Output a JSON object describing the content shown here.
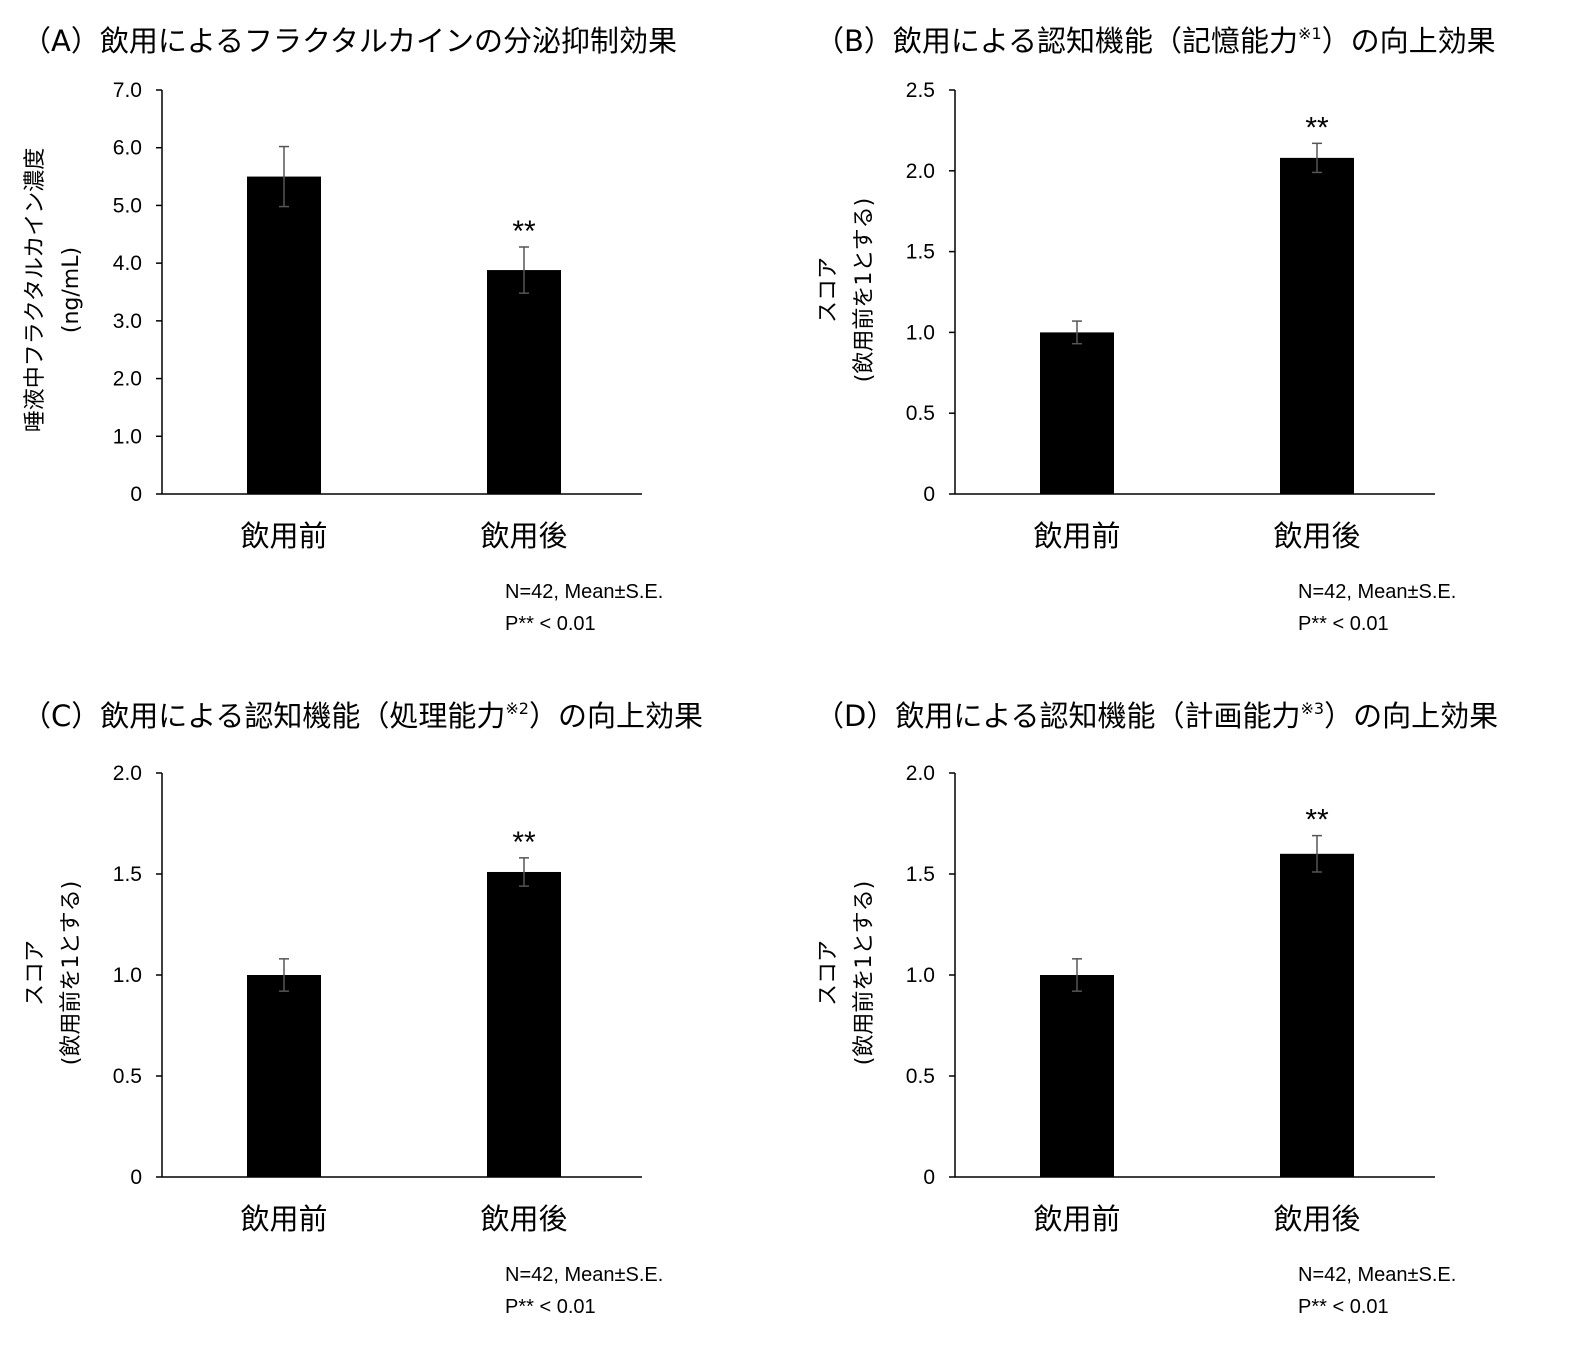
{
  "chart_data": [
    {
      "type": "bar",
      "title_prefix": "（A）",
      "title_main": "飲用によるフラクタルカインの分泌抑制効果",
      "title_sup": "",
      "title_suffix": "",
      "ylabel_line1": "唾液中フラクタルカイン濃度",
      "ylabel_line2": "(ng/mL)",
      "ylim": [
        0,
        7
      ],
      "yticks": [
        "0",
        "1.0",
        "2.0",
        "3.0",
        "4.0",
        "5.0",
        "6.0",
        "7.0"
      ],
      "categories": [
        "飲用前",
        "飲用後"
      ],
      "values": [
        5.5,
        3.88
      ],
      "errors": [
        0.52,
        0.4
      ],
      "significance": [
        "",
        "**"
      ],
      "note_line1": "N=42, Mean±S.E.",
      "note_line2": "P** < 0.01"
    },
    {
      "type": "bar",
      "title_prefix": "（B）",
      "title_main": "飲用による認知機能（記憶能力",
      "title_sup": "※1",
      "title_suffix": "）の向上効果",
      "ylabel_line1": "スコア",
      "ylabel_line2": "(飲用前を1とする)",
      "ylim": [
        0,
        2.5
      ],
      "yticks": [
        "0",
        "0.5",
        "1.0",
        "1.5",
        "2.0",
        "2.5"
      ],
      "categories": [
        "飲用前",
        "飲用後"
      ],
      "values": [
        1.0,
        2.08
      ],
      "errors": [
        0.07,
        0.09
      ],
      "significance": [
        "",
        "**"
      ],
      "note_line1": "N=42, Mean±S.E.",
      "note_line2": "P** < 0.01"
    },
    {
      "type": "bar",
      "title_prefix": "（C）",
      "title_main": "飲用による認知機能（処理能力",
      "title_sup": "※2",
      "title_suffix": "）の向上効果",
      "ylabel_line1": "スコア",
      "ylabel_line2": "(飲用前を1とする)",
      "ylim": [
        0,
        2.0
      ],
      "yticks": [
        "0",
        "0.5",
        "1.0",
        "1.5",
        "2.0"
      ],
      "categories": [
        "飲用前",
        "飲用後"
      ],
      "values": [
        1.0,
        1.51
      ],
      "errors": [
        0.08,
        0.07
      ],
      "significance": [
        "",
        "**"
      ],
      "note_line1": "N=42, Mean±S.E.",
      "note_line2": "P** < 0.01"
    },
    {
      "type": "bar",
      "title_prefix": "（D）",
      "title_main": "飲用による認知機能（計画能力",
      "title_sup": "※3",
      "title_suffix": "）の向上効果",
      "ylabel_line1": "スコア",
      "ylabel_line2": "(飲用前を1とする)",
      "ylim": [
        0,
        2.0
      ],
      "yticks": [
        "0",
        "0.5",
        "1.0",
        "1.5",
        "2.0"
      ],
      "categories": [
        "飲用前",
        "飲用後"
      ],
      "values": [
        1.0,
        1.6
      ],
      "errors": [
        0.08,
        0.09
      ],
      "significance": [
        "",
        "**"
      ],
      "note_line1": "N=42, Mean±S.E.",
      "note_line2": "P** < 0.01"
    }
  ]
}
